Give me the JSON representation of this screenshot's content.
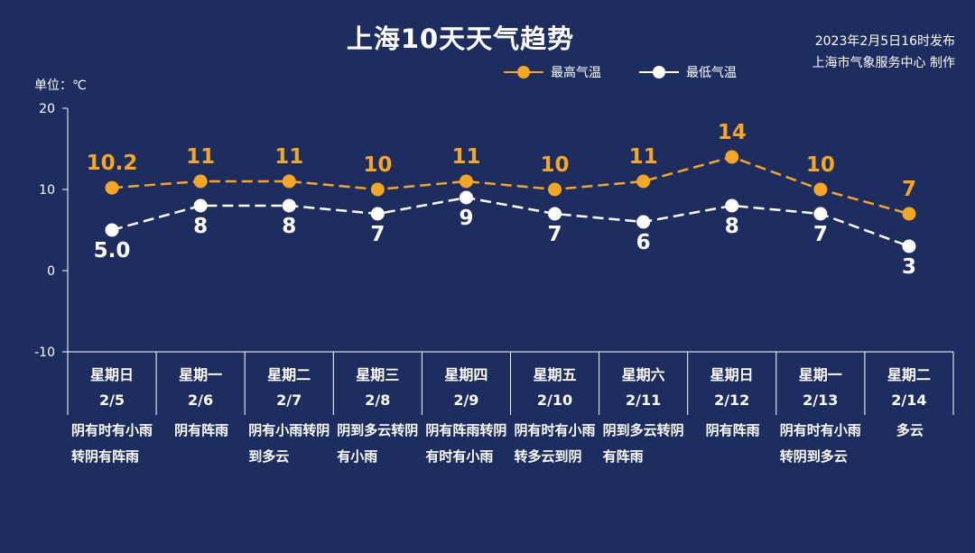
{
  "header": {
    "title": "上海10天天气趋势",
    "issue_line1": "2023年2月5日16时发布",
    "issue_line2": "上海市气象服务中心 制作",
    "unit": "单位：℃"
  },
  "colors": {
    "background": "#1e2d60",
    "high": "#f5a623",
    "low": "#ffffff",
    "axis": "#ffffff"
  },
  "chart_data": {
    "type": "line",
    "title": "上海10天天气趋势",
    "ylabel": "单位：℃",
    "ylim": [
      -10,
      20
    ],
    "yticks": [
      -10,
      0,
      10,
      20
    ],
    "grid": false,
    "legend": "top-right",
    "categories": [
      {
        "weekday": "星期日",
        "date": "2/5",
        "desc": "阴有时有小雨转阴有阵雨"
      },
      {
        "weekday": "星期一",
        "date": "2/6",
        "desc": "阴有阵雨"
      },
      {
        "weekday": "星期二",
        "date": "2/7",
        "desc": "阴有小雨转阴到多云"
      },
      {
        "weekday": "星期三",
        "date": "2/8",
        "desc": "阴到多云转阴有小雨"
      },
      {
        "weekday": "星期四",
        "date": "2/9",
        "desc": "阴有阵雨转阴有时有小雨"
      },
      {
        "weekday": "星期五",
        "date": "2/10",
        "desc": "阴有时有小雨转多云到阴"
      },
      {
        "weekday": "星期六",
        "date": "2/11",
        "desc": "阴到多云转阴有阵雨"
      },
      {
        "weekday": "星期日",
        "date": "2/12",
        "desc": "阴有阵雨"
      },
      {
        "weekday": "星期一",
        "date": "2/13",
        "desc": "阴有时有小雨转阴到多云"
      },
      {
        "weekday": "星期二",
        "date": "2/14",
        "desc": "多云"
      }
    ],
    "series": [
      {
        "name": "最高气温",
        "values": [
          10.2,
          11,
          11,
          10,
          11,
          10,
          11,
          14,
          10,
          7
        ],
        "labels": [
          "10.2",
          "11",
          "11",
          "10",
          "11",
          "10",
          "11",
          "14",
          "10",
          "7"
        ]
      },
      {
        "name": "最低气温",
        "values": [
          5.0,
          8,
          8,
          7,
          9,
          7,
          6,
          8,
          7,
          3
        ],
        "labels": [
          "5.0",
          "8",
          "8",
          "7",
          "9",
          "7",
          "6",
          "8",
          "7",
          "3"
        ]
      }
    ]
  }
}
